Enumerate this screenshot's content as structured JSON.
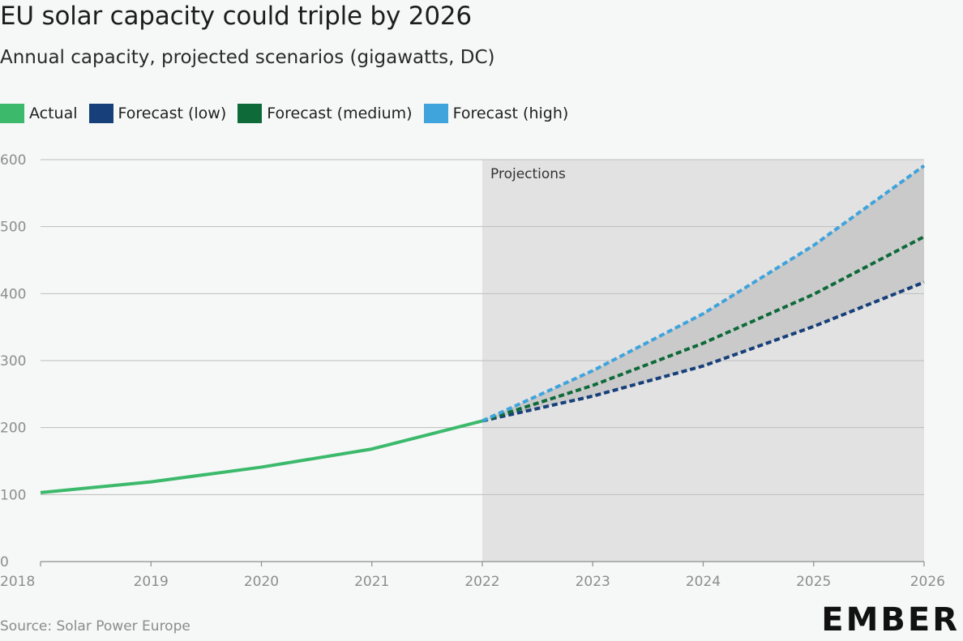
{
  "header": {
    "title": "EU solar capacity could triple by 2026",
    "subtitle": "Annual capacity, projected scenarios (gigawatts, DC)"
  },
  "footer": {
    "source": "Source: Solar Power Europe",
    "logo_text": "EMBER"
  },
  "chart_data": {
    "type": "line",
    "title": "EU solar capacity could triple by 2026",
    "subtitle": "Annual capacity, projected scenarios (gigawatts, DC)",
    "xlabel": "",
    "ylabel": "",
    "x_ticks": [
      "2018",
      "2019",
      "2020",
      "2021",
      "2022",
      "2023",
      "2024",
      "2025",
      "2026"
    ],
    "y_ticks": [
      "0",
      "100",
      "200",
      "300",
      "400",
      "500",
      "600"
    ],
    "xlim": [
      2018,
      2026
    ],
    "ylim": [
      0,
      600
    ],
    "grid": "horizontal",
    "legend_position": "top-left",
    "shaded_region": {
      "label": "Projections",
      "x_start": 2022,
      "x_end": 2026
    },
    "series": [
      {
        "name": "Actual",
        "color": "#3cb96b",
        "style": "solid",
        "x": [
          2018,
          2019,
          2020,
          2021,
          2022
        ],
        "values": [
          103,
          119,
          141,
          168,
          210
        ]
      },
      {
        "name": "Forecast (low)",
        "color": "#173f7a",
        "style": "dashed",
        "x": [
          2022,
          2023,
          2024,
          2025,
          2026
        ],
        "values": [
          210,
          247,
          292,
          351,
          417
        ]
      },
      {
        "name": "Forecast (medium)",
        "color": "#0f6a3a",
        "style": "dashed",
        "x": [
          2022,
          2023,
          2024,
          2025,
          2026
        ],
        "values": [
          210,
          263,
          326,
          399,
          485
        ]
      },
      {
        "name": "Forecast (high)",
        "color": "#3fa3dc",
        "style": "dashed",
        "x": [
          2022,
          2023,
          2024,
          2025,
          2026
        ],
        "values": [
          210,
          285,
          370,
          472,
          591
        ]
      }
    ]
  }
}
